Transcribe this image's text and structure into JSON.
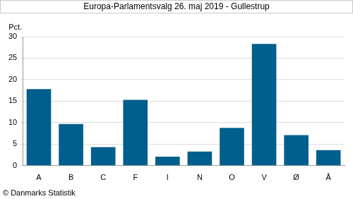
{
  "chart_data": {
    "type": "bar",
    "title": "Europa-Parlamentsvalg 26. maj 2019 - Gullestrup",
    "ylabel": "Pct.",
    "source": "© Danmarks Statistik",
    "categories": [
      "A",
      "B",
      "C",
      "F",
      "I",
      "N",
      "O",
      "V",
      "Ø",
      "Å"
    ],
    "values": [
      17.8,
      9.7,
      4.3,
      15.3,
      2.1,
      3.3,
      8.8,
      28.3,
      7.1,
      3.6
    ],
    "color": "#005f8c",
    "ylim": [
      0,
      30
    ],
    "yticks": [
      0,
      5,
      10,
      15,
      20,
      25,
      30
    ],
    "grid": true
  }
}
